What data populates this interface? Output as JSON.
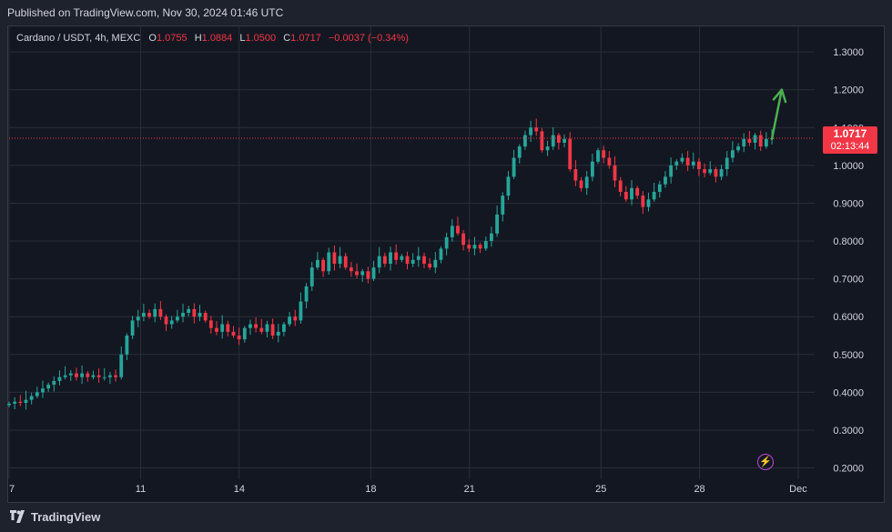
{
  "header": {
    "published": "Published on TradingView.com, Nov 30, 2024 01:46 UTC"
  },
  "legend": {
    "symbol": "Cardano / USDT, 4h, MEXC",
    "o_label": "O",
    "o_value": "1.0755",
    "h_label": "H",
    "h_value": "1.0884",
    "l_label": "L",
    "l_value": "1.0500",
    "c_label": "C",
    "c_value": "1.0717",
    "change": "−0.0037 (−0.34%)"
  },
  "price_badge": {
    "price": "1.0717",
    "countdown": "02:13:44"
  },
  "footer": {
    "brand": "TradingView",
    "logo_icon": "tradingview-logo-icon"
  },
  "colors": {
    "up": "#26a69a",
    "down": "#f23645",
    "arrow": "#4caf50",
    "background": "#131722",
    "grid": "#2a2e39"
  },
  "chart_data": {
    "type": "candlestick",
    "title": "Cardano / USDT, 4h, MEXC",
    "last_price": 1.0717,
    "y_ticks": [
      "1.3000",
      "1.2000",
      "1.1000",
      "1.0000",
      "0.9000",
      "0.8000",
      "0.7000",
      "0.6000",
      "0.5000",
      "0.4000",
      "0.3000",
      "0.2000"
    ],
    "ylim": [
      0.17,
      1.37
    ],
    "x_ticks": [
      {
        "label": "7",
        "day": 0
      },
      {
        "label": "11",
        "day": 4
      },
      {
        "label": "14",
        "day": 7
      },
      {
        "label": "18",
        "day": 11
      },
      {
        "label": "21",
        "day": 14
      },
      {
        "label": "25",
        "day": 18
      },
      {
        "label": "28",
        "day": 21
      },
      {
        "label": "Dec",
        "day": 24
      }
    ],
    "x_range_days": [
      0,
      24.5
    ],
    "grid": true,
    "annotation": {
      "type": "arrow",
      "color": "#4caf50",
      "from": {
        "day": 23.2,
        "price": 1.07
      },
      "to": {
        "day": 23.5,
        "price": 1.2
      }
    },
    "closes": [
      0.37,
      0.375,
      0.372,
      0.38,
      0.39,
      0.4,
      0.41,
      0.42,
      0.43,
      0.44,
      0.445,
      0.45,
      0.44,
      0.45,
      0.44,
      0.445,
      0.44,
      0.44,
      0.445,
      0.44,
      0.5,
      0.55,
      0.59,
      0.6,
      0.61,
      0.6,
      0.62,
      0.6,
      0.58,
      0.59,
      0.6,
      0.61,
      0.62,
      0.6,
      0.61,
      0.59,
      0.57,
      0.56,
      0.58,
      0.56,
      0.55,
      0.54,
      0.57,
      0.58,
      0.57,
      0.56,
      0.58,
      0.55,
      0.56,
      0.58,
      0.6,
      0.59,
      0.64,
      0.68,
      0.73,
      0.75,
      0.72,
      0.77,
      0.74,
      0.76,
      0.73,
      0.72,
      0.71,
      0.72,
      0.7,
      0.73,
      0.76,
      0.74,
      0.77,
      0.75,
      0.76,
      0.74,
      0.75,
      0.76,
      0.74,
      0.73,
      0.75,
      0.78,
      0.81,
      0.84,
      0.82,
      0.79,
      0.78,
      0.79,
      0.78,
      0.8,
      0.82,
      0.87,
      0.92,
      0.97,
      1.02,
      1.05,
      1.08,
      1.1,
      1.09,
      1.04,
      1.05,
      1.08,
      1.06,
      1.07,
      0.99,
      0.96,
      0.94,
      0.97,
      1.01,
      1.04,
      1.02,
      1.0,
      0.96,
      0.93,
      0.91,
      0.94,
      0.92,
      0.89,
      0.91,
      0.93,
      0.95,
      0.97,
      1.0,
      1.01,
      1.02,
      1.0,
      1.01,
      0.99,
      0.98,
      0.99,
      0.97,
      0.99,
      1.02,
      1.04,
      1.05,
      1.07,
      1.06,
      1.08,
      1.05,
      1.07,
      1.0717
    ]
  }
}
